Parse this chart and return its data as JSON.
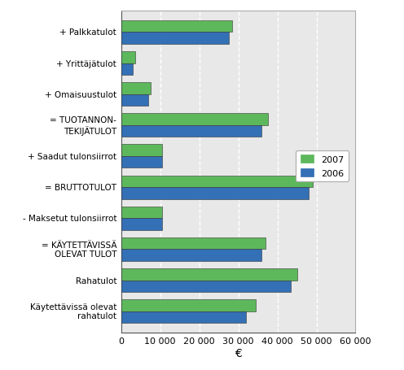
{
  "categories": [
    "Käytettävissä olevat\nrahatulot",
    "Rahatulot",
    "= KÄYTETTÄVISSÄ\nOLEVAT TULOT",
    "- Maksetut tulonsiirrot",
    "= BRUTTOTULOT",
    "+ Saadut tulonsiirrot",
    "= TUOTANNON-\nTEKIJÄTULOT",
    "+ Omaisuustulot",
    "+ Yrittäjätulot",
    "+ Palkkatulot"
  ],
  "values_2007": [
    34500,
    45000,
    37000,
    10500,
    49000,
    10500,
    37500,
    7500,
    3500,
    28500
  ],
  "values_2006": [
    32000,
    43500,
    36000,
    10500,
    48000,
    10500,
    36000,
    7000,
    3000,
    27500
  ],
  "color_2007": "#5db85c",
  "color_2006": "#3470b5",
  "xlabel": "€",
  "xlim": [
    0,
    60000
  ],
  "xticks": [
    0,
    10000,
    20000,
    30000,
    40000,
    50000,
    60000
  ],
  "xticklabels": [
    "0",
    "10 000",
    "20 000",
    "30 000",
    "40 000",
    "50 000",
    "60 000"
  ],
  "legend_labels": [
    "2007",
    "2006"
  ],
  "bar_height": 0.38,
  "plot_bg_color": "#e8e8e8",
  "background_color": "#ffffff"
}
